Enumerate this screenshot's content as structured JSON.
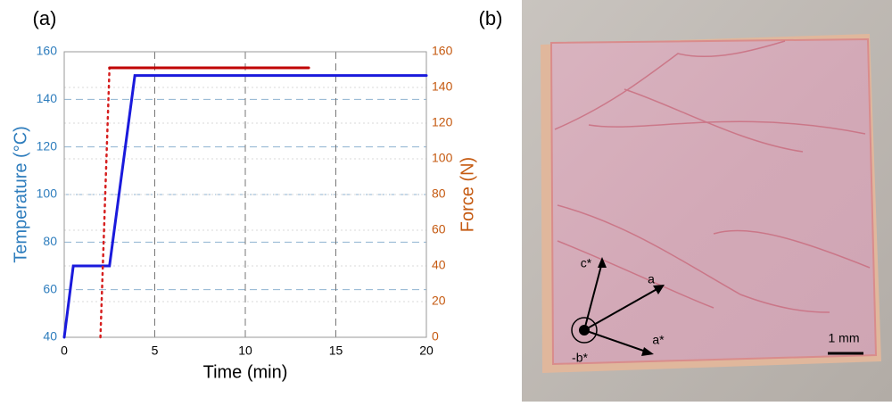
{
  "chart_data": {
    "type": "line",
    "panel_label": "(a)",
    "xlabel": "Time (min)",
    "ylabel": "Temperature (°C)",
    "y2label": "Force (N)",
    "xlim": [
      0,
      20
    ],
    "xticks": [
      0,
      5,
      10,
      15,
      20
    ],
    "ylim": [
      40,
      160
    ],
    "yticks": [
      40,
      60,
      80,
      100,
      120,
      140,
      160
    ],
    "y2lim": [
      0,
      160
    ],
    "y2ticks": [
      0,
      20,
      40,
      60,
      80,
      100,
      120,
      140,
      160
    ],
    "ycolor": "#2e7dbd",
    "y2color": "#c55a11",
    "grid": true,
    "series": [
      {
        "color": "#1a1adc",
        "linestyle": "solid",
        "x": [
          0,
          0.5,
          2.5,
          3.9,
          20
        ],
        "values": [
          40,
          70,
          70,
          150,
          150
        ]
      },
      {
        "color": "#d62020",
        "linestyle": "dotted",
        "axis": "y2",
        "x": [
          2.0,
          2.5
        ],
        "values": [
          0,
          151
        ]
      },
      {
        "color": "#c00000",
        "linestyle": "solid",
        "axis": "y2",
        "x": [
          2.5,
          13.5
        ],
        "values": [
          151,
          151
        ]
      }
    ]
  },
  "photo": {
    "panel_label": "(b)",
    "axes": [
      "c*",
      "a",
      "a*",
      "-b*"
    ],
    "scale_bar": "1 mm"
  }
}
